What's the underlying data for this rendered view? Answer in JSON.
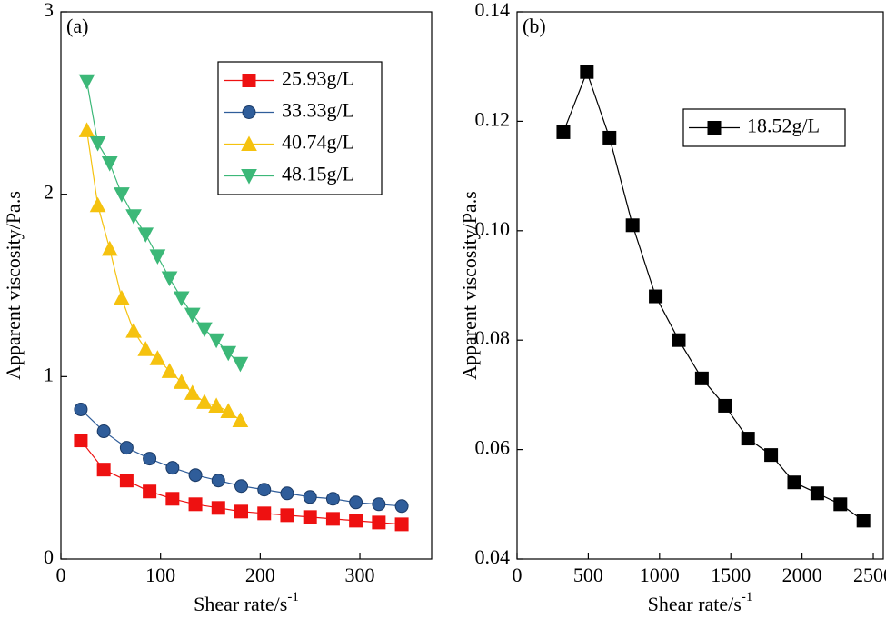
{
  "chart_data": [
    {
      "type": "line",
      "panel_label": "(a)",
      "x_label": "Shear rate/s",
      "x_label_sup": "-1",
      "y_label": "Apparent viscosity/Pa.s",
      "xlim": [
        0,
        372
      ],
      "ylim": [
        0,
        3
      ],
      "xticks": [
        0,
        100,
        200,
        300
      ],
      "yticks": [
        0,
        1,
        2,
        3
      ],
      "legend": "upper-right",
      "series": [
        {
          "name": "25.93g/L",
          "color": "#ee1111",
          "marker": "square",
          "x": [
            20,
            43,
            66,
            89,
            112,
            135,
            158,
            181,
            204,
            227,
            250,
            273,
            296,
            319,
            342
          ],
          "values": [
            0.65,
            0.49,
            0.43,
            0.37,
            0.33,
            0.3,
            0.28,
            0.26,
            0.25,
            0.24,
            0.23,
            0.22,
            0.21,
            0.2,
            0.19
          ]
        },
        {
          "name": "33.33g/L",
          "color": "#2f5d9a",
          "marker": "circle",
          "x": [
            20,
            43,
            66,
            89,
            112,
            135,
            158,
            181,
            204,
            227,
            250,
            273,
            296,
            319,
            342
          ],
          "values": [
            0.82,
            0.7,
            0.61,
            0.55,
            0.5,
            0.46,
            0.43,
            0.4,
            0.38,
            0.36,
            0.34,
            0.33,
            0.31,
            0.3,
            0.29
          ]
        },
        {
          "name": "40.74g/L",
          "color": "#f5c20f",
          "marker": "triangle-up",
          "x": [
            26,
            37,
            49,
            61,
            73,
            85,
            97,
            109,
            121,
            132,
            144,
            156,
            168,
            180
          ],
          "values": [
            2.35,
            1.94,
            1.7,
            1.43,
            1.25,
            1.15,
            1.1,
            1.03,
            0.97,
            0.91,
            0.86,
            0.84,
            0.81,
            0.76
          ]
        },
        {
          "name": "48.15g/L",
          "color": "#3cb878",
          "marker": "triangle-down",
          "x": [
            26,
            37,
            49,
            61,
            73,
            85,
            97,
            109,
            121,
            132,
            144,
            156,
            168,
            180
          ],
          "values": [
            2.62,
            2.28,
            2.17,
            2.0,
            1.88,
            1.78,
            1.66,
            1.54,
            1.43,
            1.34,
            1.26,
            1.2,
            1.13,
            1.07
          ]
        }
      ]
    },
    {
      "type": "line",
      "panel_label": "(b)",
      "x_label": "Shear rate/s",
      "x_label_sup": "-1",
      "y_label": "Apparent viscosity/Pa.s",
      "xlim": [
        0,
        2570
      ],
      "ylim": [
        0.04,
        0.14
      ],
      "xticks": [
        0,
        500,
        1000,
        1500,
        2000,
        2500
      ],
      "yticks": [
        {
          "value": 0.04,
          "label": "0.04"
        },
        {
          "value": 0.06,
          "label": "0.06"
        },
        {
          "value": 0.08,
          "label": "0.08"
        },
        {
          "value": 0.1,
          "label": "0.10"
        },
        {
          "value": 0.12,
          "label": "0.12"
        },
        {
          "value": 0.14,
          "label": "0.14"
        }
      ],
      "legend": "upper-right",
      "series": [
        {
          "name": "18.52g/L",
          "color": "#000000",
          "marker": "square",
          "x": [
            325,
            490,
            649,
            811,
            973,
            1135,
            1297,
            1459,
            1621,
            1783,
            1945,
            2107,
            2269,
            2431
          ],
          "values": [
            0.118,
            0.129,
            0.117,
            0.101,
            0.088,
            0.08,
            0.073,
            0.068,
            0.062,
            0.059,
            0.054,
            0.052,
            0.05,
            0.047
          ]
        }
      ]
    }
  ]
}
